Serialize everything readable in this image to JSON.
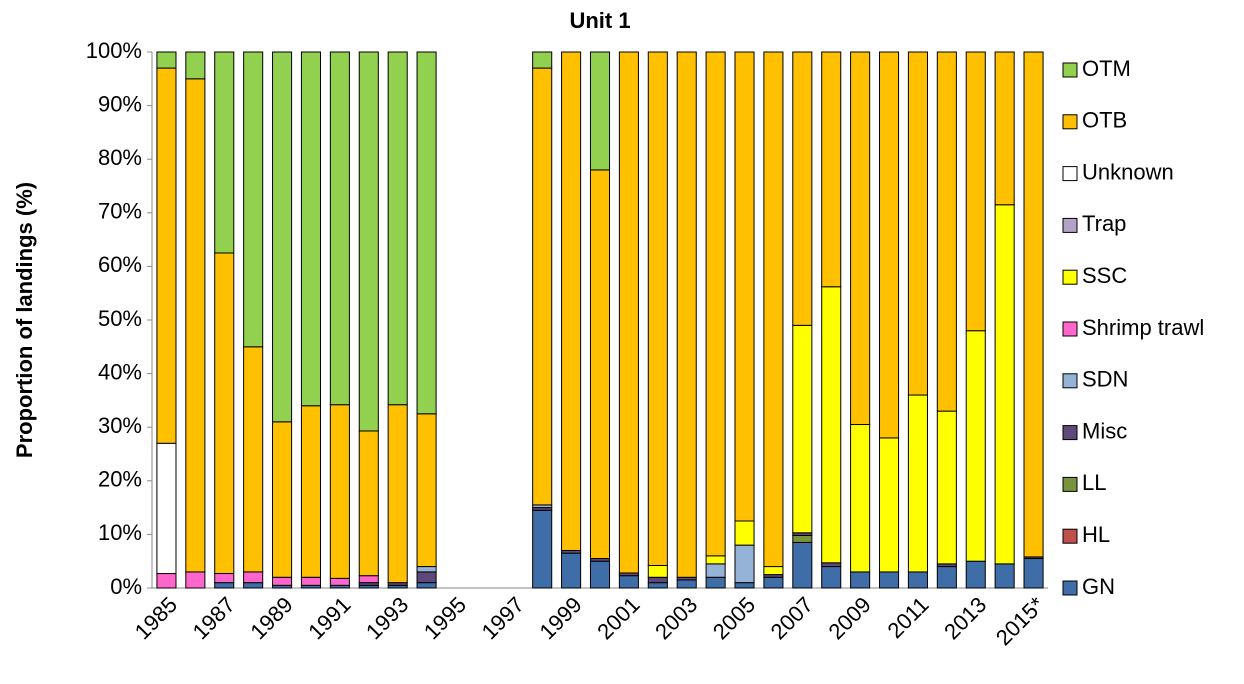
{
  "chart_data": {
    "type": "stacked_bar",
    "title": "Unit 1",
    "y_label": "Proportion of landings (%)",
    "categories": [
      "1985",
      null,
      "1987",
      null,
      "1989",
      null,
      "1991",
      null,
      "1993",
      null,
      "1995",
      null,
      "1997",
      null,
      "1999",
      null,
      "2001",
      null,
      "2003",
      null,
      "2005",
      null,
      "2007",
      null,
      "2009",
      null,
      "2011",
      null,
      "2013",
      null,
      "2015*"
    ],
    "ylim": [
      0,
      100
    ],
    "yticks": [
      {
        "value": 0,
        "label": "0%"
      },
      {
        "value": 10,
        "label": "10%"
      },
      {
        "value": 20,
        "label": "20%"
      },
      {
        "value": 30,
        "label": "30%"
      },
      {
        "value": 40,
        "label": "40%"
      },
      {
        "value": 50,
        "label": "50%"
      },
      {
        "value": 60,
        "label": "60%"
      },
      {
        "value": 70,
        "label": "70%"
      },
      {
        "value": 80,
        "label": "80%"
      },
      {
        "value": 90,
        "label": "90%"
      },
      {
        "value": 100,
        "label": "100%"
      }
    ],
    "legend": "right",
    "series": [
      {
        "name": "GN",
        "color": "#3f6da8",
        "values": [
          0,
          0,
          1,
          1,
          0.5,
          0.5,
          0.5,
          0.5,
          0.5,
          1,
          null,
          null,
          null,
          14.5,
          6.5,
          5,
          2.3,
          1,
          1.5,
          2,
          1,
          2,
          8.5,
          4,
          3,
          3,
          3,
          4,
          5,
          4.5,
          5.5
        ]
      },
      {
        "name": "HL",
        "color": "#c0504d",
        "values": [
          0,
          0,
          0,
          0,
          0,
          0,
          0,
          0,
          0,
          0,
          null,
          null,
          null,
          0,
          0,
          0,
          0,
          0,
          0,
          0,
          0,
          0,
          0,
          0,
          0,
          0,
          0,
          0,
          0,
          0,
          0
        ]
      },
      {
        "name": "LL",
        "color": "#77933c",
        "values": [
          0,
          0,
          0,
          0,
          0,
          0,
          0,
          0,
          0,
          0,
          null,
          null,
          null,
          0,
          0,
          0,
          0,
          0,
          0,
          0,
          0,
          0,
          1.3,
          0,
          0,
          0,
          0,
          0,
          0,
          0,
          0
        ]
      },
      {
        "name": "Misc",
        "color": "#5f497a",
        "values": [
          0,
          0,
          0,
          0,
          0,
          0,
          0,
          0.5,
          0.5,
          2,
          null,
          null,
          null,
          0.5,
          0.5,
          0.5,
          0.5,
          1,
          0.5,
          0,
          0,
          0.5,
          0.5,
          0.7,
          0,
          0,
          0,
          0.5,
          0,
          0,
          0.3
        ]
      },
      {
        "name": "SDN",
        "color": "#95b3d7",
        "values": [
          0,
          0,
          0,
          0,
          0,
          0,
          0,
          0,
          0,
          1,
          null,
          null,
          null,
          0.5,
          0,
          0,
          0,
          0,
          0,
          2.5,
          7,
          0,
          0,
          0,
          0,
          0,
          0,
          0,
          0,
          0,
          0
        ]
      },
      {
        "name": "Shrimp trawl",
        "color": "#ff66cc",
        "values": [
          2.7,
          3,
          1.7,
          2,
          1.5,
          1.5,
          1.3,
          1.3,
          0,
          0,
          null,
          null,
          null,
          0,
          0,
          0,
          0,
          0,
          0,
          0,
          0,
          0,
          0,
          0,
          0,
          0,
          0,
          0,
          0,
          0,
          0
        ]
      },
      {
        "name": "SSC",
        "color": "#ffff00",
        "values": [
          0,
          0,
          0,
          0,
          0,
          0,
          0,
          0,
          0,
          0,
          null,
          null,
          null,
          0,
          0,
          0,
          0,
          2.2,
          0,
          1.5,
          4.5,
          1.5,
          38.7,
          51.5,
          27.5,
          25,
          33,
          28.5,
          43,
          67,
          0
        ]
      },
      {
        "name": "Trap",
        "color": "#b3a2c7",
        "values": [
          0,
          0,
          0,
          0,
          0,
          0,
          0,
          0,
          0,
          0,
          null,
          null,
          null,
          0,
          0,
          0,
          0,
          0,
          0,
          0,
          0,
          0,
          0,
          0,
          0,
          0,
          0,
          0,
          0,
          0,
          0
        ]
      },
      {
        "name": "Unknown",
        "color": "#ffffff",
        "values": [
          24.3,
          0,
          0,
          0,
          0,
          0,
          0,
          0,
          0,
          0,
          null,
          null,
          null,
          0,
          0,
          0,
          0,
          0,
          0,
          0,
          0,
          0,
          0,
          0,
          0,
          0,
          0,
          0,
          0,
          0,
          0
        ]
      },
      {
        "name": "OTB",
        "color": "#ffc000",
        "values": [
          70,
          92,
          59.8,
          42,
          29,
          32,
          32.4,
          27,
          33.2,
          28.5,
          null,
          null,
          null,
          81.5,
          93,
          72.5,
          97.2,
          95.8,
          98,
          94,
          87.5,
          96,
          51,
          43.8,
          69.5,
          72,
          64,
          67,
          52,
          28.5,
          94.2
        ]
      },
      {
        "name": "OTM",
        "color": "#92d050",
        "values": [
          3,
          5,
          37.5,
          55,
          69,
          66,
          65.8,
          70.7,
          65.8,
          67.5,
          null,
          null,
          null,
          3,
          0,
          22,
          0,
          0,
          0,
          0,
          0,
          0,
          0,
          0,
          0,
          0,
          0,
          0,
          0,
          0,
          0
        ]
      }
    ]
  }
}
